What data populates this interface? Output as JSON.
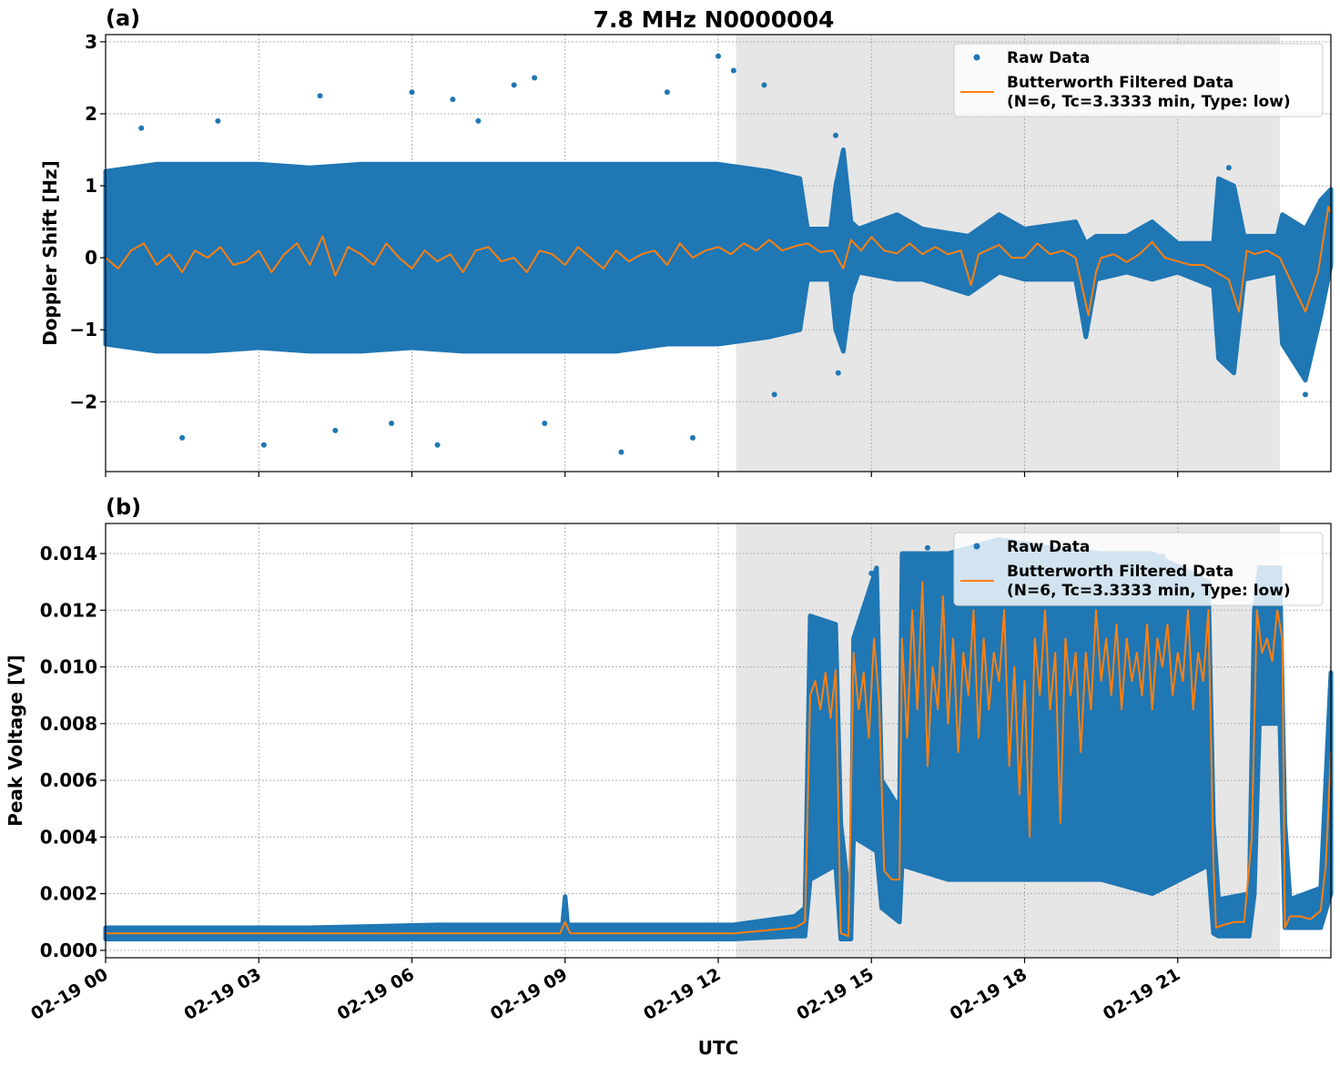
{
  "figure_title": "7.8 MHz N0000004",
  "xlabel": "UTC",
  "x_range_hours": [
    0,
    24
  ],
  "x_ticks": [
    {
      "hour": 0,
      "label": "02-19 00"
    },
    {
      "hour": 3,
      "label": "02-19 03"
    },
    {
      "hour": 6,
      "label": "02-19 06"
    },
    {
      "hour": 9,
      "label": "02-19 09"
    },
    {
      "hour": 12,
      "label": "02-19 12"
    },
    {
      "hour": 15,
      "label": "02-19 15"
    },
    {
      "hour": 18,
      "label": "02-19 18"
    },
    {
      "hour": 21,
      "label": "02-19 21"
    }
  ],
  "shaded_interval_hours": [
    12.35,
    23.0
  ],
  "colors": {
    "raw": "#1f77b4",
    "filtered": "#ff7f0e",
    "shade": "#e6e6e6",
    "grid": "#b0b0b0"
  },
  "legend": {
    "raw_label": "Raw Data",
    "filtered_label_1": "Butterworth Filtered Data",
    "filtered_label_2": "(N=6, Tc=3.3333 min, Type: low)",
    "placement": "top-right"
  },
  "chart_data": [
    {
      "type": "scatter+line",
      "panel_label": "(a)",
      "ylabel": "Doppler Shift [Hz]",
      "ylim": [
        -2.97,
        3.1
      ],
      "y_ticks": [
        {
          "v": -2,
          "label": "−2"
        },
        {
          "v": -1,
          "label": "−1"
        },
        {
          "v": 0,
          "label": "0"
        },
        {
          "v": 1,
          "label": "1"
        },
        {
          "v": 2,
          "label": "2"
        },
        {
          "v": 3,
          "label": "3"
        }
      ],
      "raw_band_hours_lo_hi": [
        [
          0,
          -1.2,
          1.2
        ],
        [
          1,
          -1.3,
          1.3
        ],
        [
          2,
          -1.3,
          1.3
        ],
        [
          3,
          -1.25,
          1.3
        ],
        [
          4,
          -1.3,
          1.25
        ],
        [
          5,
          -1.3,
          1.3
        ],
        [
          6,
          -1.25,
          1.3
        ],
        [
          7,
          -1.3,
          1.3
        ],
        [
          8,
          -1.3,
          1.3
        ],
        [
          9,
          -1.3,
          1.3
        ],
        [
          10,
          -1.3,
          1.3
        ],
        [
          11,
          -1.2,
          1.3
        ],
        [
          12,
          -1.2,
          1.3
        ],
        [
          13,
          -1.1,
          1.2
        ],
        [
          13.6,
          -1.0,
          1.1
        ],
        [
          13.75,
          -0.3,
          0.4
        ],
        [
          14.2,
          -0.3,
          0.4
        ],
        [
          14.3,
          -1.0,
          1.0
        ],
        [
          14.45,
          -1.3,
          1.5
        ],
        [
          14.6,
          -0.5,
          0.5
        ],
        [
          14.75,
          -0.2,
          0.4
        ],
        [
          15.5,
          -0.3,
          0.6
        ],
        [
          16,
          -0.3,
          0.4
        ],
        [
          16.9,
          -0.5,
          0.3
        ],
        [
          17.5,
          -0.2,
          0.6
        ],
        [
          18,
          -0.3,
          0.4
        ],
        [
          19,
          -0.3,
          0.5
        ],
        [
          19.2,
          -1.1,
          0.2
        ],
        [
          19.4,
          -0.3,
          0.3
        ],
        [
          20,
          -0.2,
          0.3
        ],
        [
          20.5,
          -0.3,
          0.5
        ],
        [
          21,
          -0.2,
          0.2
        ],
        [
          21.7,
          -0.4,
          0.2
        ],
        [
          21.8,
          -1.4,
          1.1
        ],
        [
          22.1,
          -1.6,
          1.0
        ],
        [
          22.3,
          -0.3,
          0.3
        ],
        [
          22.95,
          -0.2,
          0.3
        ],
        [
          23.05,
          -1.2,
          0.6
        ],
        [
          23.5,
          -1.7,
          0.4
        ],
        [
          23.8,
          -0.8,
          0.8
        ],
        [
          24,
          -0.1,
          0.95
        ]
      ],
      "raw_outliers": [
        [
          0.7,
          1.8
        ],
        [
          1.5,
          -2.5
        ],
        [
          2.2,
          1.9
        ],
        [
          3.1,
          -2.6
        ],
        [
          4.2,
          2.25
        ],
        [
          4.5,
          -2.4
        ],
        [
          5.6,
          -2.3
        ],
        [
          6.0,
          2.3
        ],
        [
          6.5,
          -2.6
        ],
        [
          6.8,
          2.2
        ],
        [
          7.3,
          1.9
        ],
        [
          8.0,
          2.4
        ],
        [
          8.4,
          2.5
        ],
        [
          8.6,
          -2.3
        ],
        [
          10.1,
          -2.7
        ],
        [
          11.0,
          2.3
        ],
        [
          11.5,
          -2.5
        ],
        [
          12.0,
          2.8
        ],
        [
          12.3,
          2.6
        ],
        [
          12.9,
          2.4
        ],
        [
          13.1,
          -1.9
        ],
        [
          14.3,
          1.7
        ],
        [
          14.35,
          -1.6
        ],
        [
          22.0,
          1.25
        ],
        [
          23.5,
          -1.9
        ]
      ],
      "filtered": [
        [
          0,
          0.0
        ],
        [
          0.25,
          -0.15
        ],
        [
          0.5,
          0.1
        ],
        [
          0.75,
          0.2
        ],
        [
          1,
          -0.1
        ],
        [
          1.25,
          0.05
        ],
        [
          1.5,
          -0.2
        ],
        [
          1.75,
          0.1
        ],
        [
          2,
          0.0
        ],
        [
          2.25,
          0.15
        ],
        [
          2.5,
          -0.1
        ],
        [
          2.75,
          -0.05
        ],
        [
          3,
          0.1
        ],
        [
          3.25,
          -0.2
        ],
        [
          3.5,
          0.05
        ],
        [
          3.75,
          0.2
        ],
        [
          4,
          -0.1
        ],
        [
          4.25,
          0.3
        ],
        [
          4.5,
          -0.25
        ],
        [
          4.75,
          0.15
        ],
        [
          5,
          0.05
        ],
        [
          5.25,
          -0.1
        ],
        [
          5.5,
          0.2
        ],
        [
          5.75,
          0.0
        ],
        [
          6,
          -0.15
        ],
        [
          6.25,
          0.1
        ],
        [
          6.5,
          -0.05
        ],
        [
          6.75,
          0.05
        ],
        [
          7,
          -0.2
        ],
        [
          7.25,
          0.1
        ],
        [
          7.5,
          0.15
        ],
        [
          7.75,
          -0.05
        ],
        [
          8,
          0.0
        ],
        [
          8.25,
          -0.2
        ],
        [
          8.5,
          0.1
        ],
        [
          8.75,
          0.05
        ],
        [
          9,
          -0.1
        ],
        [
          9.25,
          0.15
        ],
        [
          9.5,
          0.0
        ],
        [
          9.75,
          -0.15
        ],
        [
          10,
          0.1
        ],
        [
          10.25,
          -0.05
        ],
        [
          10.5,
          0.05
        ],
        [
          10.75,
          0.1
        ],
        [
          11,
          -0.1
        ],
        [
          11.25,
          0.2
        ],
        [
          11.5,
          0.0
        ],
        [
          11.75,
          0.1
        ],
        [
          12,
          0.15
        ],
        [
          12.25,
          0.05
        ],
        [
          12.5,
          0.2
        ],
        [
          12.75,
          0.1
        ],
        [
          13,
          0.25
        ],
        [
          13.25,
          0.1
        ],
        [
          13.5,
          0.16
        ],
        [
          13.75,
          0.2
        ],
        [
          14,
          0.08
        ],
        [
          14.25,
          0.1
        ],
        [
          14.45,
          -0.15
        ],
        [
          14.6,
          0.25
        ],
        [
          14.8,
          0.1
        ],
        [
          15,
          0.29
        ],
        [
          15.25,
          0.1
        ],
        [
          15.5,
          0.06
        ],
        [
          15.75,
          0.2
        ],
        [
          16,
          0.05
        ],
        [
          16.25,
          0.15
        ],
        [
          16.5,
          0.05
        ],
        [
          16.75,
          0.1
        ],
        [
          16.95,
          -0.38
        ],
        [
          17.1,
          0.05
        ],
        [
          17.5,
          0.18
        ],
        [
          17.75,
          0.0
        ],
        [
          18,
          0.0
        ],
        [
          18.25,
          0.2
        ],
        [
          18.5,
          0.05
        ],
        [
          18.75,
          0.1
        ],
        [
          19,
          0.0
        ],
        [
          19.25,
          -0.8
        ],
        [
          19.4,
          -0.2
        ],
        [
          19.5,
          0.0
        ],
        [
          19.75,
          0.05
        ],
        [
          20,
          -0.06
        ],
        [
          20.25,
          0.05
        ],
        [
          20.5,
          0.22
        ],
        [
          20.75,
          0.0
        ],
        [
          21,
          -0.05
        ],
        [
          21.25,
          -0.1
        ],
        [
          21.5,
          -0.1
        ],
        [
          21.75,
          -0.2
        ],
        [
          22,
          -0.3
        ],
        [
          22.2,
          -0.75
        ],
        [
          22.35,
          0.1
        ],
        [
          22.5,
          0.05
        ],
        [
          22.75,
          0.1
        ],
        [
          23,
          0.0
        ],
        [
          23.2,
          -0.3
        ],
        [
          23.5,
          -0.75
        ],
        [
          23.75,
          -0.2
        ],
        [
          23.95,
          0.71
        ],
        [
          24,
          0.62
        ]
      ]
    },
    {
      "type": "scatter+line",
      "panel_label": "(b)",
      "ylabel": "Peak Voltage [V]",
      "ylim": [
        -0.00026,
        0.01506
      ],
      "y_ticks": [
        {
          "v": 0,
          "label": "0.000"
        },
        {
          "v": 0.002,
          "label": "0.002"
        },
        {
          "v": 0.004,
          "label": "0.004"
        },
        {
          "v": 0.006,
          "label": "0.006"
        },
        {
          "v": 0.008,
          "label": "0.008"
        },
        {
          "v": 0.01,
          "label": "0.010"
        },
        {
          "v": 0.012,
          "label": "0.012"
        },
        {
          "v": 0.014,
          "label": "0.014"
        }
      ],
      "raw_band_hours_lo_hi": [
        [
          0,
          0.0004,
          0.0008
        ],
        [
          4,
          0.0004,
          0.0008
        ],
        [
          6.5,
          0.0004,
          0.0009
        ],
        [
          8.95,
          0.0004,
          0.0009
        ],
        [
          9.0,
          0.0004,
          0.0019
        ],
        [
          9.05,
          0.0004,
          0.0009
        ],
        [
          12.3,
          0.0004,
          0.0009
        ],
        [
          13.5,
          0.0005,
          0.0012
        ],
        [
          13.7,
          0.0005,
          0.0015
        ],
        [
          13.8,
          0.0025,
          0.0118
        ],
        [
          14.3,
          0.003,
          0.0115
        ],
        [
          14.4,
          0.0004,
          0.0045
        ],
        [
          14.6,
          0.0004,
          0.0012
        ],
        [
          14.65,
          0.004,
          0.011
        ],
        [
          15.1,
          0.0035,
          0.0135
        ],
        [
          15.2,
          0.0015,
          0.006
        ],
        [
          15.55,
          0.001,
          0.005
        ],
        [
          15.6,
          0.003,
          0.014
        ],
        [
          16.5,
          0.0025,
          0.014
        ],
        [
          17.5,
          0.0025,
          0.0145
        ],
        [
          18.5,
          0.0025,
          0.0142
        ],
        [
          19.5,
          0.0025,
          0.014
        ],
        [
          20.5,
          0.002,
          0.014
        ],
        [
          21.6,
          0.003,
          0.013
        ],
        [
          21.7,
          0.0006,
          0.0045
        ],
        [
          21.8,
          0.0005,
          0.0018
        ],
        [
          22.4,
          0.0005,
          0.002
        ],
        [
          22.5,
          0.002,
          0.012
        ],
        [
          22.6,
          0.008,
          0.0135
        ],
        [
          23.0,
          0.008,
          0.0135
        ],
        [
          23.1,
          0.0008,
          0.0045
        ],
        [
          23.2,
          0.0008,
          0.0018
        ],
        [
          23.8,
          0.0008,
          0.0022
        ],
        [
          24,
          0.002,
          0.0098
        ]
      ],
      "raw_outliers": [
        [
          15.0,
          0.0133
        ],
        [
          16.1,
          0.0142
        ],
        [
          17.9,
          0.0141
        ],
        [
          19.0,
          0.014
        ],
        [
          20.7,
          0.0139
        ]
      ],
      "filtered": [
        [
          0,
          0.0006
        ],
        [
          6.5,
          0.0006
        ],
        [
          8.9,
          0.0006
        ],
        [
          9.0,
          0.001
        ],
        [
          9.1,
          0.0006
        ],
        [
          12.3,
          0.0006
        ],
        [
          13.5,
          0.0008
        ],
        [
          13.7,
          0.001
        ],
        [
          13.8,
          0.009
        ],
        [
          13.9,
          0.0095
        ],
        [
          14.0,
          0.0085
        ],
        [
          14.1,
          0.0098
        ],
        [
          14.2,
          0.0082
        ],
        [
          14.3,
          0.0099
        ],
        [
          14.4,
          0.0006
        ],
        [
          14.55,
          0.0005
        ],
        [
          14.65,
          0.0105
        ],
        [
          14.75,
          0.0085
        ],
        [
          14.85,
          0.0098
        ],
        [
          14.95,
          0.0075
        ],
        [
          15.05,
          0.011
        ],
        [
          15.15,
          0.0088
        ],
        [
          15.25,
          0.0028
        ],
        [
          15.4,
          0.0025
        ],
        [
          15.55,
          0.0025
        ],
        [
          15.6,
          0.011
        ],
        [
          15.7,
          0.0075
        ],
        [
          15.8,
          0.012
        ],
        [
          15.9,
          0.0085
        ],
        [
          16.0,
          0.013
        ],
        [
          16.1,
          0.0065
        ],
        [
          16.2,
          0.01
        ],
        [
          16.3,
          0.0085
        ],
        [
          16.4,
          0.0125
        ],
        [
          16.5,
          0.008
        ],
        [
          16.6,
          0.011
        ],
        [
          16.7,
          0.007
        ],
        [
          16.8,
          0.0105
        ],
        [
          16.9,
          0.009
        ],
        [
          17.0,
          0.012
        ],
        [
          17.1,
          0.0075
        ],
        [
          17.2,
          0.011
        ],
        [
          17.3,
          0.0085
        ],
        [
          17.4,
          0.0105
        ],
        [
          17.5,
          0.0095
        ],
        [
          17.6,
          0.012
        ],
        [
          17.7,
          0.0065
        ],
        [
          17.8,
          0.01
        ],
        [
          17.9,
          0.0055
        ],
        [
          18.0,
          0.0095
        ],
        [
          18.1,
          0.004
        ],
        [
          18.2,
          0.011
        ],
        [
          18.3,
          0.009
        ],
        [
          18.4,
          0.012
        ],
        [
          18.5,
          0.0085
        ],
        [
          18.6,
          0.0105
        ],
        [
          18.7,
          0.0045
        ],
        [
          18.8,
          0.011
        ],
        [
          18.9,
          0.009
        ],
        [
          19.0,
          0.0105
        ],
        [
          19.1,
          0.007
        ],
        [
          19.2,
          0.0105
        ],
        [
          19.3,
          0.0085
        ],
        [
          19.4,
          0.012
        ],
        [
          19.5,
          0.0095
        ],
        [
          19.6,
          0.011
        ],
        [
          19.7,
          0.009
        ],
        [
          19.8,
          0.0115
        ],
        [
          19.9,
          0.0085
        ],
        [
          20.0,
          0.011
        ],
        [
          20.1,
          0.0095
        ],
        [
          20.2,
          0.0105
        ],
        [
          20.3,
          0.009
        ],
        [
          20.4,
          0.0115
        ],
        [
          20.5,
          0.0085
        ],
        [
          20.6,
          0.011
        ],
        [
          20.7,
          0.01
        ],
        [
          20.8,
          0.0115
        ],
        [
          20.9,
          0.009
        ],
        [
          21.0,
          0.0105
        ],
        [
          21.1,
          0.0095
        ],
        [
          21.2,
          0.012
        ],
        [
          21.3,
          0.0085
        ],
        [
          21.4,
          0.0105
        ],
        [
          21.5,
          0.0095
        ],
        [
          21.6,
          0.012
        ],
        [
          21.7,
          0.003
        ],
        [
          21.75,
          0.0008
        ],
        [
          21.9,
          0.0009
        ],
        [
          22.1,
          0.001
        ],
        [
          22.3,
          0.001
        ],
        [
          22.45,
          0.004
        ],
        [
          22.55,
          0.012
        ],
        [
          22.65,
          0.0105
        ],
        [
          22.75,
          0.011
        ],
        [
          22.85,
          0.0102
        ],
        [
          22.95,
          0.012
        ],
        [
          23.05,
          0.011
        ],
        [
          23.1,
          0.0008
        ],
        [
          23.2,
          0.0012
        ],
        [
          23.4,
          0.0012
        ],
        [
          23.6,
          0.0011
        ],
        [
          23.8,
          0.0014
        ],
        [
          23.9,
          0.003
        ],
        [
          24,
          0.007
        ]
      ]
    }
  ]
}
